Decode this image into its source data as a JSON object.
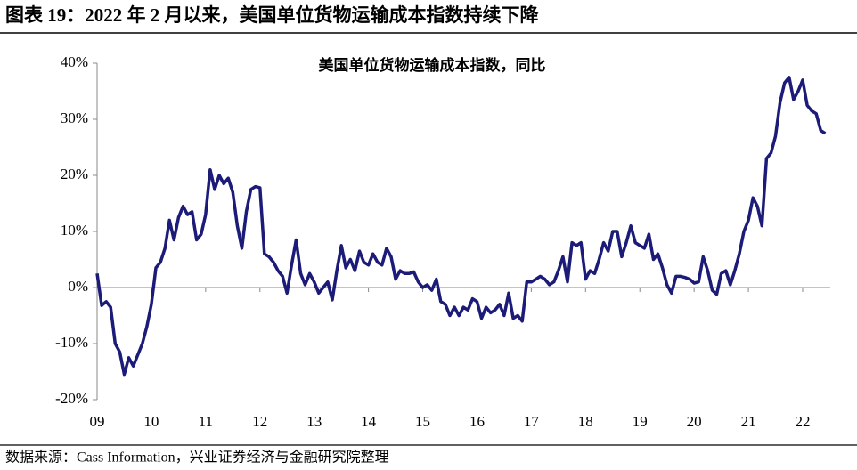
{
  "title": "图表 19：2022 年 2 月以来，美国单位货物运输成本指数持续下降",
  "source": "数据来源：Cass Information，兴业证券经济与金融研究院整理",
  "chart_data": {
    "type": "line",
    "title": "美国单位货物运输成本指数，同比",
    "categories": [
      "09",
      null,
      null,
      null,
      null,
      null,
      null,
      null,
      null,
      null,
      null,
      null,
      "10",
      null,
      null,
      null,
      null,
      null,
      null,
      null,
      null,
      null,
      null,
      null,
      "11",
      null,
      null,
      null,
      null,
      null,
      null,
      null,
      null,
      null,
      null,
      null,
      "12",
      null,
      null,
      null,
      null,
      null,
      null,
      null,
      null,
      null,
      null,
      null,
      "13",
      null,
      null,
      null,
      null,
      null,
      null,
      null,
      null,
      null,
      null,
      null,
      "14",
      null,
      null,
      null,
      null,
      null,
      null,
      null,
      null,
      null,
      null,
      null,
      "15",
      null,
      null,
      null,
      null,
      null,
      null,
      null,
      null,
      null,
      null,
      null,
      "16",
      null,
      null,
      null,
      null,
      null,
      null,
      null,
      null,
      null,
      null,
      null,
      "17",
      null,
      null,
      null,
      null,
      null,
      null,
      null,
      null,
      null,
      null,
      null,
      "18",
      null,
      null,
      null,
      null,
      null,
      null,
      null,
      null,
      null,
      null,
      null,
      "19",
      null,
      null,
      null,
      null,
      null,
      null,
      null,
      null,
      null,
      null,
      null,
      "20",
      null,
      null,
      null,
      null,
      null,
      null,
      null,
      null,
      null,
      null,
      null,
      "21",
      null,
      null,
      null,
      null,
      null,
      null,
      null,
      null,
      null,
      null,
      null,
      "22",
      null,
      null,
      null,
      null,
      null
    ],
    "series": [
      {
        "color": "#1c1c78",
        "values": [
          2.5,
          -3.2,
          -2.5,
          -3.5,
          -10,
          -11.5,
          -15.5,
          -12.5,
          -14,
          -12,
          -10,
          -7,
          -3,
          3.5,
          4.5,
          7,
          12,
          8.5,
          12.5,
          14.5,
          13,
          13.5,
          8.5,
          9.5,
          13,
          21,
          17.5,
          20,
          18.5,
          19.5,
          17,
          11,
          7,
          13.5,
          17.5,
          18,
          17.8,
          6,
          5.5,
          4.5,
          3,
          2,
          -1,
          4,
          8.5,
          2.5,
          0.5,
          2.5,
          1,
          -1,
          0,
          1,
          -2.2,
          3,
          7.5,
          3.5,
          5,
          3,
          6.5,
          4.5,
          4,
          6,
          4.5,
          4,
          7,
          5.5,
          1.5,
          3,
          2.5,
          2.5,
          2.8,
          1,
          0,
          0.5,
          -0.5,
          1.5,
          -2.5,
          -3,
          -5,
          -3.5,
          -5,
          -3.5,
          -4,
          -2,
          -2.5,
          -5.5,
          -3.5,
          -4.5,
          -4,
          -3,
          -5,
          -1,
          -5.5,
          -5,
          -6,
          1,
          1,
          1.5,
          2,
          1.5,
          0.5,
          1,
          3,
          5.5,
          1,
          8,
          7.5,
          8,
          1.5,
          3,
          2.5,
          5,
          8,
          6.5,
          10,
          10,
          5.5,
          8,
          11,
          8,
          7.5,
          7,
          9.5,
          5,
          6,
          3.5,
          0.5,
          -1,
          2,
          2,
          1.8,
          1.5,
          0.8,
          1,
          5.5,
          3,
          -0.5,
          -1.2,
          2.5,
          3,
          0.5,
          3,
          6,
          10,
          12,
          16,
          14.5,
          11,
          23,
          24,
          27,
          33,
          36.5,
          37.5,
          33.5,
          35,
          37,
          32.5,
          31.5,
          31,
          28,
          27.5
        ]
      }
    ],
    "ylim": [
      -20,
      40
    ],
    "yticks": [
      {
        "value": -20,
        "label": "-20%"
      },
      {
        "value": -10,
        "label": "-10%"
      },
      {
        "value": 0,
        "label": "0%"
      },
      {
        "value": 10,
        "label": "10%"
      },
      {
        "value": 20,
        "label": "20%"
      },
      {
        "value": 30,
        "label": "30%"
      },
      {
        "value": 40,
        "label": "40%"
      }
    ]
  }
}
